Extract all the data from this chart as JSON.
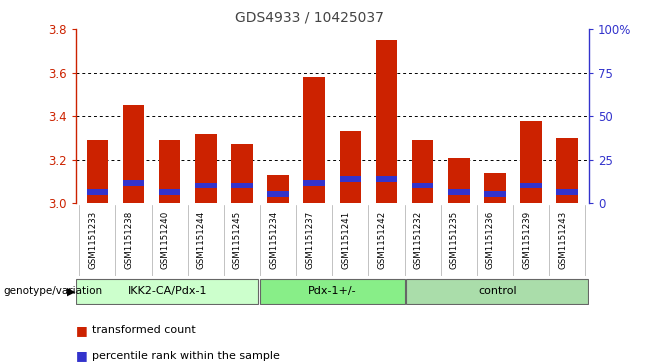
{
  "title": "GDS4933 / 10425037",
  "samples": [
    "GSM1151233",
    "GSM1151238",
    "GSM1151240",
    "GSM1151244",
    "GSM1151245",
    "GSM1151234",
    "GSM1151237",
    "GSM1151241",
    "GSM1151242",
    "GSM1151232",
    "GSM1151235",
    "GSM1151236",
    "GSM1151239",
    "GSM1151243"
  ],
  "red_values": [
    3.29,
    3.45,
    3.29,
    3.32,
    3.27,
    3.13,
    3.58,
    3.33,
    3.75,
    3.29,
    3.21,
    3.14,
    3.38,
    3.3
  ],
  "blue_bottoms": [
    3.04,
    3.08,
    3.04,
    3.07,
    3.07,
    3.03,
    3.08,
    3.1,
    3.1,
    3.07,
    3.04,
    3.03,
    3.07,
    3.04
  ],
  "blue_heights": [
    0.025,
    0.025,
    0.025,
    0.025,
    0.025,
    0.025,
    0.025,
    0.025,
    0.025,
    0.025,
    0.025,
    0.025,
    0.025,
    0.025
  ],
  "ymin": 3.0,
  "ymax": 3.8,
  "yticks": [
    3.0,
    3.2,
    3.4,
    3.6,
    3.8
  ],
  "right_yticks": [
    0,
    25,
    50,
    75,
    100
  ],
  "right_ytick_labels": [
    "0",
    "25",
    "50",
    "75",
    "100%"
  ],
  "groups": [
    {
      "label": "IKK2-CA/Pdx-1",
      "start": 0,
      "end": 5,
      "color": "#ccffcc"
    },
    {
      "label": "Pdx-1+/-",
      "start": 5,
      "end": 9,
      "color": "#88ee88"
    },
    {
      "label": "control",
      "start": 9,
      "end": 14,
      "color": "#aaddaa"
    }
  ],
  "group_label_prefix": "genotype/variation",
  "bar_color": "#cc2200",
  "blue_color": "#3333cc",
  "background_color": "#d8d8d8",
  "plot_bg": "#ffffff",
  "grid_color": "#000000",
  "title_color": "#444444",
  "left_axis_color": "#cc2200",
  "right_axis_color": "#3333cc",
  "legend_red": "transformed count",
  "legend_blue": "percentile rank within the sample"
}
